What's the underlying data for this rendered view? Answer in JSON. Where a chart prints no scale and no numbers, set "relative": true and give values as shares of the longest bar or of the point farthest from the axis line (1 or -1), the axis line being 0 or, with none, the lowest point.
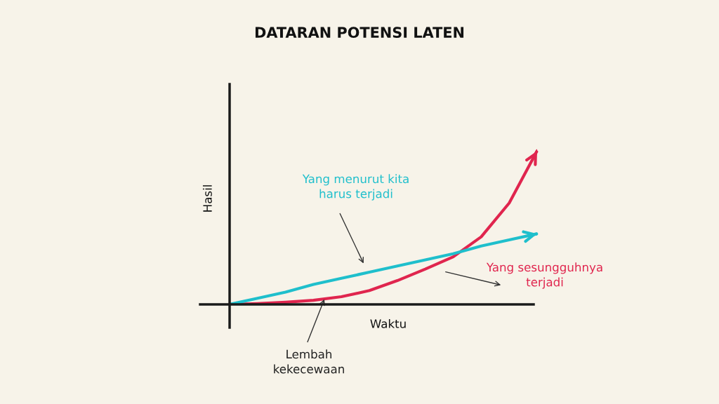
{
  "chart_data": {
    "type": "line",
    "title": "DATARAN POTENSI LATEN",
    "xlabel": "Waktu",
    "ylabel": "Hasil",
    "relative": true,
    "categories": [
      null,
      null,
      null,
      null,
      null,
      null,
      null,
      null,
      null,
      null,
      null,
      null
    ],
    "series": [
      {
        "color": "#e0254e",
        "values": [
          0,
          0.005,
          0.014,
          0.027,
          0.05,
          0.09,
          0.155,
          0.23,
          0.31,
          0.44,
          0.66,
          1
        ]
      },
      {
        "color": "#1fbfcc",
        "values": [
          0,
          0.04,
          0.08,
          0.13,
          0.17,
          0.21,
          0.25,
          0.29,
          0.33,
          0.38,
          0.42,
          0.46
        ]
      }
    ],
    "annotations": [
      "Yang menurut kita\nharus terjadi",
      "Yang sesungguhnya\nterjadi",
      "Lembah\nkekecewaan"
    ],
    "grid": false,
    "legend": false,
    "marker": "none"
  }
}
